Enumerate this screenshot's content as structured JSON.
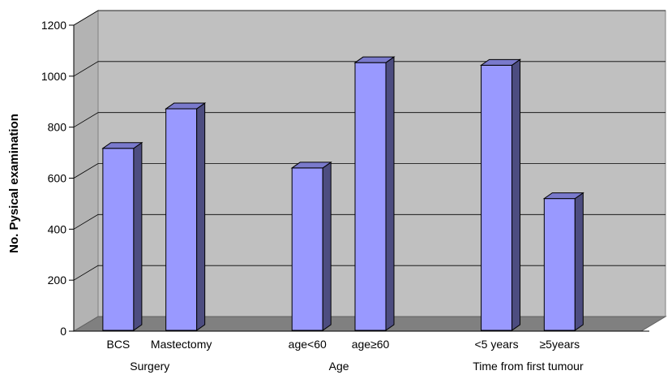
{
  "chart_data": {
    "type": "bar",
    "title": "",
    "ylabel": "No. Pysical examination",
    "xlabel": "",
    "ylim": [
      0,
      1200
    ],
    "yticks": [
      0,
      200,
      400,
      600,
      800,
      1000,
      1200
    ],
    "grid": true,
    "categories": [
      "BCS",
      "Mastectomy",
      "age<60",
      "age≥60",
      "<5 years",
      "≥5years"
    ],
    "values": [
      717,
      872,
      640,
      1053,
      1043,
      520
    ],
    "groups": [
      {
        "label": "Surgery",
        "categories": [
          "BCS",
          "Mastectomy"
        ]
      },
      {
        "label": "Age",
        "categories": [
          "age<60",
          "age≥60"
        ]
      },
      {
        "label": "Time from first tumour",
        "categories": [
          "<5 years",
          "≥5years"
        ]
      }
    ],
    "colors": {
      "bar_front": "#9999ff",
      "bar_side": "#4d4d80",
      "bar_top": "#7a7acc",
      "wall": "#c0c0c0",
      "floor": "#808080",
      "gridline": "#000000"
    }
  }
}
